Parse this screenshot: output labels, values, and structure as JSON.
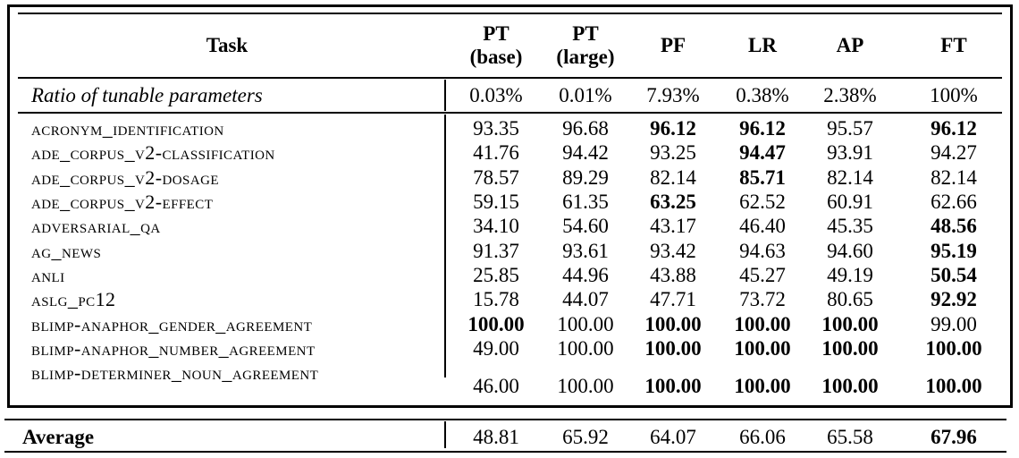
{
  "colors": {
    "text": "#000000",
    "background": "#ffffff",
    "rule": "#000000"
  },
  "columns": [
    {
      "line1": "Task",
      "line2": ""
    },
    {
      "line1": "PT",
      "line2": "(base)"
    },
    {
      "line1": "PT",
      "line2": "(large)"
    },
    {
      "line1": "PF",
      "line2": ""
    },
    {
      "line1": "LR",
      "line2": ""
    },
    {
      "line1": "AP",
      "line2": ""
    },
    {
      "line1": "FT",
      "line2": ""
    }
  ],
  "ratio_row": {
    "label": "Ratio of tunable parameters",
    "values": [
      "0.03%",
      "0.01%",
      "7.93%",
      "0.38%",
      "2.38%",
      "100%"
    ]
  },
  "rows": [
    {
      "task": "acronym_identification",
      "values": [
        "93.35",
        "96.68",
        "96.12",
        "96.12",
        "95.57",
        "96.12"
      ],
      "bold": [
        false,
        false,
        true,
        true,
        false,
        true
      ]
    },
    {
      "task": "ade_corpus_v2-classification",
      "values": [
        "41.76",
        "94.42",
        "93.25",
        "94.47",
        "93.91",
        "94.27"
      ],
      "bold": [
        false,
        false,
        false,
        true,
        false,
        false
      ]
    },
    {
      "task": "ade_corpus_v2-dosage",
      "values": [
        "78.57",
        "89.29",
        "82.14",
        "85.71",
        "82.14",
        "82.14"
      ],
      "bold": [
        false,
        false,
        false,
        true,
        false,
        false
      ]
    },
    {
      "task": "ade_corpus_v2-effect",
      "values": [
        "59.15",
        "61.35",
        "63.25",
        "62.52",
        "60.91",
        "62.66"
      ],
      "bold": [
        false,
        false,
        true,
        false,
        false,
        false
      ]
    },
    {
      "task": "adversarial_qa",
      "values": [
        "34.10",
        "54.60",
        "43.17",
        "46.40",
        "45.35",
        "48.56"
      ],
      "bold": [
        false,
        false,
        false,
        false,
        false,
        true
      ]
    },
    {
      "task": "ag_news",
      "values": [
        "91.37",
        "93.61",
        "93.42",
        "94.63",
        "94.60",
        "95.19"
      ],
      "bold": [
        false,
        false,
        false,
        false,
        false,
        true
      ]
    },
    {
      "task": "anli",
      "values": [
        "25.85",
        "44.96",
        "43.88",
        "45.27",
        "49.19",
        "50.54"
      ],
      "bold": [
        false,
        false,
        false,
        false,
        false,
        true
      ]
    },
    {
      "task": "aslg_pc12",
      "values": [
        "15.78",
        "44.07",
        "47.71",
        "73.72",
        "80.65",
        "92.92"
      ],
      "bold": [
        false,
        false,
        false,
        false,
        false,
        true
      ]
    },
    {
      "task": "blimp-anaphor_gender_agreement",
      "values": [
        "100.00",
        "100.00",
        "100.00",
        "100.00",
        "100.00",
        "99.00"
      ],
      "bold": [
        true,
        false,
        true,
        true,
        true,
        false
      ]
    },
    {
      "task": "blimp-anaphor_number_agreement",
      "values": [
        "49.00",
        "100.00",
        "100.00",
        "100.00",
        "100.00",
        "100.00"
      ],
      "bold": [
        false,
        false,
        true,
        true,
        true,
        true
      ]
    },
    {
      "task": "blimp-determiner_noun_agreement",
      "values": [
        "46.00",
        "100.00",
        "100.00",
        "100.00",
        "100.00",
        "100.00"
      ],
      "bold": [
        false,
        false,
        true,
        true,
        true,
        true
      ]
    }
  ],
  "average_row": {
    "label": "Average",
    "values": [
      "48.81",
      "65.92",
      "64.07",
      "66.06",
      "65.58",
      "67.96"
    ],
    "bold": [
      false,
      false,
      false,
      false,
      false,
      true
    ]
  }
}
